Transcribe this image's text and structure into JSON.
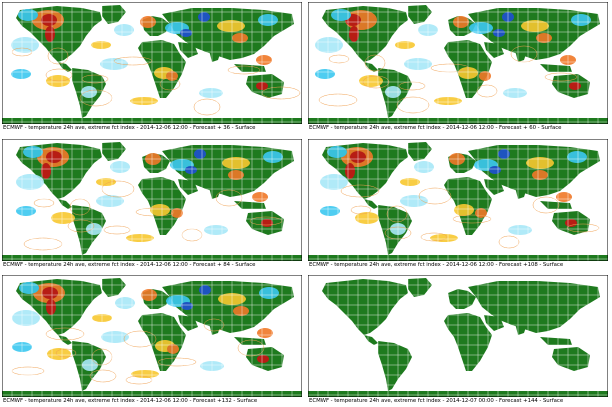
{
  "colors": {
    "land": "#1e7a1e",
    "grid": "#ffffff",
    "ocean": "#ffffff",
    "warm_strong": "#c81414",
    "warm": "#f07828",
    "warm_light": "#f8c830",
    "cold_light": "#a8e8f8",
    "cold": "#3cc8f0",
    "cold_strong": "#1e50d2",
    "contour": "#f0a050"
  },
  "panels": [
    {
      "caption": "ECMWF - temperature 24h ave, extreme fct index - 2014-12-06 12:00 - Forecast + 36 - Surface",
      "has_field": true
    },
    {
      "caption": "ECMWF - temperature 24h ave, extreme fct index - 2014-12-06 12:00 - Forecast + 60 - Surface",
      "has_field": true
    },
    {
      "caption": "ECMWF - temperature 24h ave, extreme fct index - 2014-12-06 12:00 - Forecast + 84 - Surface",
      "has_field": true
    },
    {
      "caption": "ECMWF - temperature 24h ave, extreme fct index - 2014-12-06 12:00 - Forecast +108 - Surface",
      "has_field": true
    },
    {
      "caption": "ECMWF - temperature 24h ave, extreme fct index - 2014-12-06 12:00 - Forecast +132 - Surface",
      "has_field": true
    },
    {
      "caption": "ECMWF - temperature 24h ave, extreme fct index - 2014-12-07 00:00 - Forecast +144 - Surface",
      "has_field": false
    }
  ]
}
